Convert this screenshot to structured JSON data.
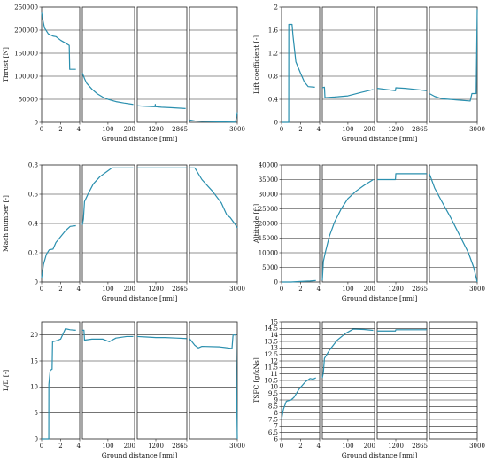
{
  "line_color": "#2a8fae",
  "chart_data": [
    {
      "type": "line",
      "ylabel": "Thrust [N]",
      "xlabel": "Ground distance [nmi]",
      "ylim": [
        0,
        250000
      ],
      "yticks": [
        0,
        50000,
        100000,
        150000,
        200000,
        250000
      ],
      "grid": true,
      "segments": [
        {
          "xlim": [
            0,
            4
          ],
          "xticks": [
            0,
            2,
            4
          ],
          "points": [
            [
              0,
              238000
            ],
            [
              0.1,
              225000
            ],
            [
              0.3,
              205000
            ],
            [
              0.7,
              192000
            ],
            [
              1.2,
              187000
            ],
            [
              1.5,
              186000
            ],
            [
              2.0,
              178000
            ],
            [
              2.5,
              172000
            ],
            [
              2.9,
              167000
            ],
            [
              2.95,
              115000
            ],
            [
              3.6,
              115000
            ]
          ]
        },
        {
          "xlim": [
            4,
            200
          ],
          "xticks": [
            100,
            200
          ],
          "points": [
            [
              4,
              107000
            ],
            [
              12,
              95000
            ],
            [
              20,
              85000
            ],
            [
              40,
              72000
            ],
            [
              60,
              62000
            ],
            [
              80,
              55000
            ],
            [
              100,
              50000
            ],
            [
              130,
              45000
            ],
            [
              160,
              42000
            ],
            [
              195,
              39000
            ]
          ]
        },
        {
          "xlim": [
            200,
            2865
          ],
          "xticks": [
            1200,
            2865
          ],
          "points": [
            [
              200,
              36000
            ],
            [
              600,
              35000
            ],
            [
              1100,
              34000
            ],
            [
              1150,
              34000
            ],
            [
              1170,
              39000
            ],
            [
              1180,
              34000
            ],
            [
              1500,
              33000
            ],
            [
              2000,
              32000
            ],
            [
              2400,
              31000
            ],
            [
              2800,
              30000
            ]
          ]
        },
        {
          "xlim": [
            2865,
            3000
          ],
          "xticks": [
            3000
          ],
          "points": [
            [
              2865,
              5000
            ],
            [
              2880,
              3000
            ],
            [
              2900,
              2000
            ],
            [
              2950,
              1000
            ],
            [
              2995,
              500
            ],
            [
              3000,
              22000
            ]
          ]
        }
      ]
    },
    {
      "type": "line",
      "ylabel": "Lift coefficient [-]",
      "xlabel": "Ground distance [nmi]",
      "ylim": [
        0,
        2
      ],
      "yticks": [
        0,
        0.4,
        0.8,
        1.2,
        1.6,
        2
      ],
      "grid": true,
      "segments": [
        {
          "xlim": [
            0,
            4
          ],
          "xticks": [
            0,
            2,
            4
          ],
          "points": [
            [
              0,
              0
            ],
            [
              0.75,
              0
            ],
            [
              0.76,
              1.7
            ],
            [
              1.1,
              1.7
            ],
            [
              1.2,
              1.5
            ],
            [
              1.5,
              1.05
            ],
            [
              2.0,
              0.85
            ],
            [
              2.4,
              0.7
            ],
            [
              2.8,
              0.62
            ],
            [
              3.5,
              0.61
            ]
          ]
        },
        {
          "xlim": [
            4,
            200
          ],
          "xticks": [
            100,
            200
          ],
          "points": [
            [
              4,
              0.6
            ],
            [
              12,
              0.61
            ],
            [
              14,
              0.43
            ],
            [
              50,
              0.44
            ],
            [
              100,
              0.46
            ],
            [
              150,
              0.52
            ],
            [
              195,
              0.57
            ]
          ]
        },
        {
          "xlim": [
            200,
            2865
          ],
          "xticks": [
            1200,
            2865
          ],
          "points": [
            [
              200,
              0.59
            ],
            [
              700,
              0.57
            ],
            [
              1180,
              0.55
            ],
            [
              1200,
              0.6
            ],
            [
              1700,
              0.59
            ],
            [
              2300,
              0.57
            ],
            [
              2850,
              0.55
            ]
          ]
        },
        {
          "xlim": [
            2865,
            3000
          ],
          "xticks": [
            3000
          ],
          "points": [
            [
              2865,
              0.5
            ],
            [
              2880,
              0.45
            ],
            [
              2900,
              0.41
            ],
            [
              2940,
              0.39
            ],
            [
              2980,
              0.37
            ],
            [
              2985,
              0.5
            ],
            [
              2997,
              0.5
            ],
            [
              3000,
              1.96
            ]
          ]
        }
      ]
    },
    {
      "type": "line",
      "ylabel": "Mach number [-]",
      "xlabel": "Ground distance [nmi]",
      "ylim": [
        0,
        0.8
      ],
      "yticks": [
        0,
        0.2,
        0.4,
        0.6,
        0.8
      ],
      "grid": true,
      "segments": [
        {
          "xlim": [
            0,
            4
          ],
          "xticks": [
            0,
            2,
            4
          ],
          "points": [
            [
              0,
              0.03
            ],
            [
              0.2,
              0.12
            ],
            [
              0.5,
              0.19
            ],
            [
              0.8,
              0.22
            ],
            [
              1.2,
              0.225
            ],
            [
              1.5,
              0.27
            ],
            [
              2.0,
              0.31
            ],
            [
              2.5,
              0.35
            ],
            [
              3.0,
              0.38
            ],
            [
              3.6,
              0.385
            ]
          ]
        },
        {
          "xlim": [
            4,
            200
          ],
          "xticks": [
            100,
            200
          ],
          "points": [
            [
              4,
              0.39
            ],
            [
              8,
              0.43
            ],
            [
              12,
              0.55
            ],
            [
              25,
              0.6
            ],
            [
              45,
              0.67
            ],
            [
              70,
              0.72
            ],
            [
              100,
              0.76
            ],
            [
              115,
              0.78
            ],
            [
              195,
              0.78
            ]
          ]
        },
        {
          "xlim": [
            200,
            2865
          ],
          "xticks": [
            1200,
            2865
          ],
          "points": [
            [
              200,
              0.78
            ],
            [
              2860,
              0.78
            ]
          ]
        },
        {
          "xlim": [
            2865,
            3000
          ],
          "xticks": [
            3000
          ],
          "points": [
            [
              2865,
              0.78
            ],
            [
              2880,
              0.78
            ],
            [
              2900,
              0.7
            ],
            [
              2930,
              0.62
            ],
            [
              2955,
              0.54
            ],
            [
              2970,
              0.46
            ],
            [
              2980,
              0.44
            ],
            [
              2995,
              0.39
            ],
            [
              3000,
              0.37
            ]
          ]
        }
      ]
    },
    {
      "type": "line",
      "ylabel": "Altitude [ft]",
      "xlabel": "Ground distance [nmi]",
      "ylim": [
        0,
        40000
      ],
      "yticks": [
        0,
        5000,
        10000,
        15000,
        20000,
        25000,
        30000,
        35000,
        40000
      ],
      "grid": true,
      "segments": [
        {
          "xlim": [
            0,
            4
          ],
          "xticks": [
            0,
            2,
            4
          ],
          "points": [
            [
              0,
              0
            ],
            [
              1.0,
              0
            ],
            [
              2.0,
              200
            ],
            [
              3.0,
              350
            ],
            [
              3.6,
              500
            ]
          ]
        },
        {
          "xlim": [
            4,
            200
          ],
          "xticks": [
            100,
            200
          ],
          "points": [
            [
              4,
              500
            ],
            [
              8,
              7000
            ],
            [
              15,
              10000
            ],
            [
              30,
              15500
            ],
            [
              50,
              20500
            ],
            [
              75,
              25000
            ],
            [
              100,
              28500
            ],
            [
              130,
              31000
            ],
            [
              160,
              33000
            ],
            [
              195,
              35000
            ]
          ]
        },
        {
          "xlim": [
            200,
            2865
          ],
          "xticks": [
            1200,
            2865
          ],
          "points": [
            [
              200,
              35000
            ],
            [
              1180,
              35000
            ],
            [
              1200,
              37000
            ],
            [
              2860,
              37000
            ]
          ]
        },
        {
          "xlim": [
            2865,
            3000
          ],
          "xticks": [
            3000
          ],
          "points": [
            [
              2865,
              37000
            ],
            [
              2880,
              32000
            ],
            [
              2900,
              27500
            ],
            [
              2925,
              22000
            ],
            [
              2950,
              16000
            ],
            [
              2975,
              10000
            ],
            [
              2990,
              5000
            ],
            [
              3000,
              0
            ]
          ]
        }
      ]
    },
    {
      "type": "line",
      "ylabel": "L/D [-]",
      "xlabel": "Ground distance [nmi]",
      "ylim": [
        0,
        22.5
      ],
      "yticks": [
        0,
        5,
        10,
        15,
        20
      ],
      "grid": true,
      "segments": [
        {
          "xlim": [
            0,
            4
          ],
          "xticks": [
            0,
            2,
            4
          ],
          "points": [
            [
              0,
              0
            ],
            [
              0.75,
              0
            ],
            [
              0.76,
              10.5
            ],
            [
              0.9,
              13.2
            ],
            [
              1.1,
              13.4
            ],
            [
              1.15,
              18.7
            ],
            [
              1.6,
              18.9
            ],
            [
              2.0,
              19.2
            ],
            [
              2.5,
              21.2
            ],
            [
              3.0,
              21.0
            ],
            [
              3.6,
              20.9
            ]
          ]
        },
        {
          "xlim": [
            4,
            200
          ],
          "xticks": [
            100,
            200
          ],
          "points": [
            [
              4,
              20.9
            ],
            [
              10,
              20.9
            ],
            [
              12,
              19.0
            ],
            [
              40,
              19.2
            ],
            [
              80,
              19.2
            ],
            [
              105,
              18.7
            ],
            [
              130,
              19.4
            ],
            [
              170,
              19.7
            ],
            [
              195,
              19.7
            ]
          ]
        },
        {
          "xlim": [
            200,
            2865
          ],
          "xticks": [
            1200,
            2865
          ],
          "points": [
            [
              200,
              19.7
            ],
            [
              700,
              19.6
            ],
            [
              1200,
              19.5
            ],
            [
              1700,
              19.5
            ],
            [
              2300,
              19.4
            ],
            [
              2850,
              19.3
            ]
          ]
        },
        {
          "xlim": [
            2865,
            3000
          ],
          "xticks": [
            3000
          ],
          "points": [
            [
              2865,
              19.3
            ],
            [
              2880,
              18.0
            ],
            [
              2890,
              17.5
            ],
            [
              2900,
              17.8
            ],
            [
              2950,
              17.7
            ],
            [
              2985,
              17.4
            ],
            [
              2988,
              20.0
            ],
            [
              2996,
              20.0
            ],
            [
              3000,
              0
            ]
          ]
        }
      ]
    },
    {
      "type": "line",
      "ylabel": "TSFC [g/kNs]",
      "xlabel": "Ground distance [nmi]",
      "ylim": [
        6,
        15
      ],
      "yticks": [
        6,
        6.5,
        7,
        7.5,
        8,
        8.5,
        9,
        9.5,
        10,
        10.5,
        11,
        11.5,
        12,
        12.5,
        13,
        13.5,
        14,
        14.5,
        15
      ],
      "grid": true,
      "segments": [
        {
          "xlim": [
            0,
            4
          ],
          "xticks": [
            0,
            2,
            4
          ],
          "points": [
            [
              0,
              7.5
            ],
            [
              0.2,
              8.3
            ],
            [
              0.5,
              8.9
            ],
            [
              1.0,
              9.0
            ],
            [
              1.3,
              9.2
            ],
            [
              1.8,
              9.8
            ],
            [
              2.5,
              10.4
            ],
            [
              3.0,
              10.65
            ],
            [
              3.3,
              10.6
            ],
            [
              3.6,
              10.7
            ]
          ]
        },
        {
          "xlim": [
            4,
            200
          ],
          "xticks": [
            100,
            200
          ],
          "points": [
            [
              4,
              10.7
            ],
            [
              8,
              11.1
            ],
            [
              12,
              12.2
            ],
            [
              30,
              12.8
            ],
            [
              60,
              13.6
            ],
            [
              90,
              14.1
            ],
            [
              120,
              14.45
            ],
            [
              160,
              14.42
            ],
            [
              195,
              14.35
            ]
          ]
        },
        {
          "xlim": [
            200,
            2865
          ],
          "xticks": [
            1200,
            2865
          ],
          "points": [
            [
              200,
              14.3
            ],
            [
              1180,
              14.3
            ],
            [
              1200,
              14.4
            ],
            [
              2860,
              14.4
            ]
          ]
        },
        {
          "xlim": [
            2865,
            3000
          ],
          "xticks": [
            3000
          ],
          "points": []
        }
      ]
    }
  ]
}
